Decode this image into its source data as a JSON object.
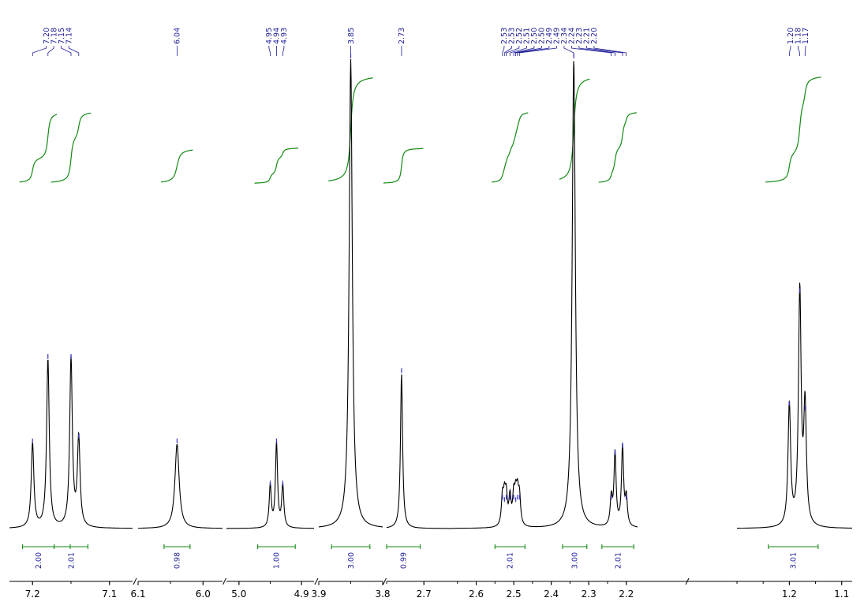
{
  "chart_data": {
    "type": "line",
    "title": "",
    "xlabel": "",
    "ylabel": "",
    "x_axis_reversed": true,
    "x_axis_broken": true,
    "segments": [
      {
        "range": [
          7.23,
          7.07
        ],
        "ticks": [
          {
            "v": 7.2,
            "label": "7.2"
          },
          {
            "v": 7.1,
            "label": "7.1"
          }
        ]
      },
      {
        "range": [
          6.1,
          5.97
        ],
        "ticks": [
          {
            "v": 6.1,
            "label": "6.1"
          },
          {
            "v": 6.0,
            "label": "6.0"
          }
        ]
      },
      {
        "range": [
          5.02,
          4.88
        ],
        "ticks": [
          {
            "v": 5.0,
            "label": "5.0"
          },
          {
            "v": 4.9,
            "label": "4.9"
          }
        ]
      },
      {
        "range": [
          3.9,
          3.8
        ],
        "ticks": [
          {
            "v": 3.9,
            "label": "3.9"
          },
          {
            "v": 3.8,
            "label": "3.8"
          }
        ]
      },
      {
        "range": [
          2.75,
          2.66
        ],
        "ticks": [
          {
            "v": 2.7,
            "label": "2.7"
          }
        ]
      },
      {
        "range": [
          2.66,
          2.17
        ],
        "ticks": [
          {
            "v": 2.6,
            "label": "2.6"
          },
          {
            "v": 2.5,
            "label": "2.5"
          },
          {
            "v": 2.4,
            "label": "2.4"
          },
          {
            "v": 2.3,
            "label": "2.3"
          },
          {
            "v": 2.2,
            "label": "2.2"
          }
        ]
      },
      {
        "range": [
          1.3,
          1.08
        ],
        "ticks": [
          {
            "v": 1.2,
            "label": "1.2"
          },
          {
            "v": 1.1,
            "label": "1.1"
          }
        ]
      }
    ],
    "peaks": [
      {
        "shift": 7.2,
        "label": "7.20",
        "height": 0.18
      },
      {
        "shift": 7.18,
        "label": "7.18",
        "height": 0.36
      },
      {
        "shift": 7.15,
        "label": "7.15",
        "height": 0.36
      },
      {
        "shift": 7.14,
        "label": "7.14",
        "height": 0.19
      },
      {
        "shift": 6.04,
        "label": "6.04",
        "height": 0.18
      },
      {
        "shift": 4.95,
        "label": "4.95",
        "height": 0.09
      },
      {
        "shift": 4.94,
        "label": "4.94",
        "height": 0.18
      },
      {
        "shift": 4.93,
        "label": "4.93",
        "height": 0.09
      },
      {
        "shift": 3.85,
        "label": "3.85",
        "height": 1.0
      },
      {
        "shift": 2.73,
        "label": "2.73",
        "height": 0.33
      },
      {
        "shift": 2.53,
        "label": "2.53",
        "height": 0.06
      },
      {
        "shift": 2.53,
        "label": "2.53",
        "height": 0.055
      },
      {
        "shift": 2.52,
        "label": "2.52",
        "height": 0.06
      },
      {
        "shift": 2.51,
        "label": "2.51",
        "height": 0.06
      },
      {
        "shift": 2.5,
        "label": "2.50",
        "height": 0.06
      },
      {
        "shift": 2.5,
        "label": "2.50",
        "height": 0.055
      },
      {
        "shift": 2.49,
        "label": "2.49",
        "height": 0.06
      },
      {
        "shift": 2.49,
        "label": "2.49",
        "height": 0.06
      },
      {
        "shift": 2.34,
        "label": "2.34",
        "height": 1.0
      },
      {
        "shift": 2.24,
        "label": "2.24",
        "height": 0.06
      },
      {
        "shift": 2.23,
        "label": "2.23",
        "height": 0.155
      },
      {
        "shift": 2.21,
        "label": "2.21",
        "height": 0.17
      },
      {
        "shift": 2.2,
        "label": "2.20",
        "height": 0.06
      },
      {
        "shift": 1.2,
        "label": "1.20",
        "height": 0.26
      },
      {
        "shift": 1.18,
        "label": "1.18",
        "height": 0.5
      },
      {
        "shift": 1.17,
        "label": "1.17",
        "height": 0.25
      }
    ],
    "integrals": [
      {
        "from": 7.213,
        "to": 7.172,
        "value": "2.00"
      },
      {
        "from": 7.172,
        "to": 7.128,
        "value": "2.01"
      },
      {
        "from": 6.06,
        "to": 6.02,
        "value": "0.98"
      },
      {
        "from": 4.97,
        "to": 4.91,
        "value": "1.00"
      },
      {
        "from": 3.88,
        "to": 3.82,
        "value": "3.00"
      },
      {
        "from": 2.75,
        "to": 2.705,
        "value": "0.99"
      },
      {
        "from": 2.55,
        "to": 2.47,
        "value": "2.01"
      },
      {
        "from": 2.37,
        "to": 2.305,
        "value": "3.00"
      },
      {
        "from": 2.265,
        "to": 2.18,
        "value": "2.01"
      },
      {
        "from": 1.24,
        "to": 1.145,
        "value": "3.01"
      }
    ],
    "colors": {
      "spectrum": "#000000",
      "integral": "#138a13",
      "peak_labels": "#1f1f9a",
      "axis": "#000000"
    }
  }
}
